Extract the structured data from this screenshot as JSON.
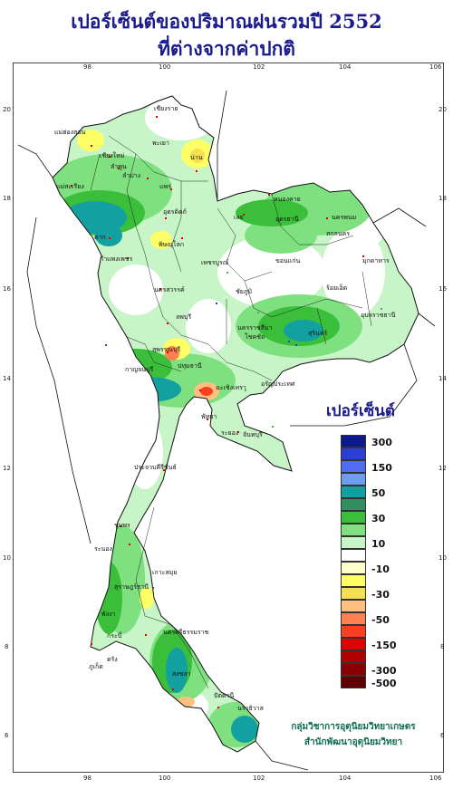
{
  "title_line1": "เปอร์เซ็นต์ของปริมาณฝนรวมปี 2552",
  "title_line2": "ที่ต่างจากค่าปกติ",
  "axes": {
    "x_ticks": [
      "98",
      "100",
      "102",
      "104",
      "106"
    ],
    "y_ticks": [
      "20",
      "18",
      "16",
      "14",
      "12",
      "10",
      "8",
      "6"
    ]
  },
  "legend": {
    "title": "เปอร์เซ็นต์",
    "classes": [
      {
        "label": "300",
        "color": "#0b1a8f"
      },
      {
        "label": "",
        "color": "#2b3fd6"
      },
      {
        "label": "150",
        "color": "#4f6cf2"
      },
      {
        "label": "",
        "color": "#6f9cf0"
      },
      {
        "label": "50",
        "color": "#12a0a0"
      },
      {
        "label": "",
        "color": "#2f8f60"
      },
      {
        "label": "30",
        "color": "#3bbf3b"
      },
      {
        "label": "",
        "color": "#7fe07f"
      },
      {
        "label": "10",
        "color": "#c8f5c8"
      },
      {
        "label": "",
        "color": "#ffffff"
      },
      {
        "label": "-10",
        "color": "#ffffcc"
      },
      {
        "label": "",
        "color": "#ffff66"
      },
      {
        "label": "-30",
        "color": "#f5e050"
      },
      {
        "label": "",
        "color": "#ffc080"
      },
      {
        "label": "-50",
        "color": "#ff8050"
      },
      {
        "label": "",
        "color": "#ff4020"
      },
      {
        "label": "-150",
        "color": "#e00000"
      },
      {
        "label": "",
        "color": "#b00000"
      },
      {
        "label": "-300",
        "color": "#8a0000"
      },
      {
        "label": "-500",
        "color": "#600000"
      }
    ]
  },
  "places": [
    "เชียงราย",
    "แม่ฮ่องสอน",
    "เชียงใหม่",
    "ลำพูน",
    "ลำปาง",
    "พะเยา",
    "น่าน",
    "แพร่",
    "แม่สะเรียง",
    "ตาก",
    "อุตรดิตถ์",
    "พิษณุโลก",
    "กำแพงเพชร",
    "เพชรบูรณ์",
    "นครสวรรค์",
    "หนองคาย",
    "อุดรธานี",
    "เลย",
    "นครพนม",
    "สกลนคร",
    "มุกดาหาร",
    "ขอนแก่น",
    "ชัยภูมิ",
    "ร้อยเอ็ด",
    "อุบลราชธานี",
    "นครราชสีมา",
    "โชคชัย",
    "สุรินทร์",
    "ลพบุรี",
    "สุพรรณบุรี",
    "กาญจนบุรี",
    "ปทุมธานี",
    "ฉะเชิงเทรา",
    "อรัญประเทศ",
    "พัทยา",
    "ระยอง",
    "จันทบุรี",
    "ประจวบคีรีขันธ์",
    "ชุมพร",
    "ระนอง",
    "สุราษฎร์ธานี",
    "เกาะสมุย",
    "นครศรีธรรมราช",
    "พังงา",
    "กระบี่",
    "ตรัง",
    "สงขลา",
    "ปัตตานี",
    "นราธิวาส",
    "ภูเก็ต"
  ],
  "credit_line1": "กลุ่มวิชาการอุตุนิยมวิทยาเกษตร",
  "credit_line2": "สำนักพัฒนาอุตุนิยมวิทยา"
}
